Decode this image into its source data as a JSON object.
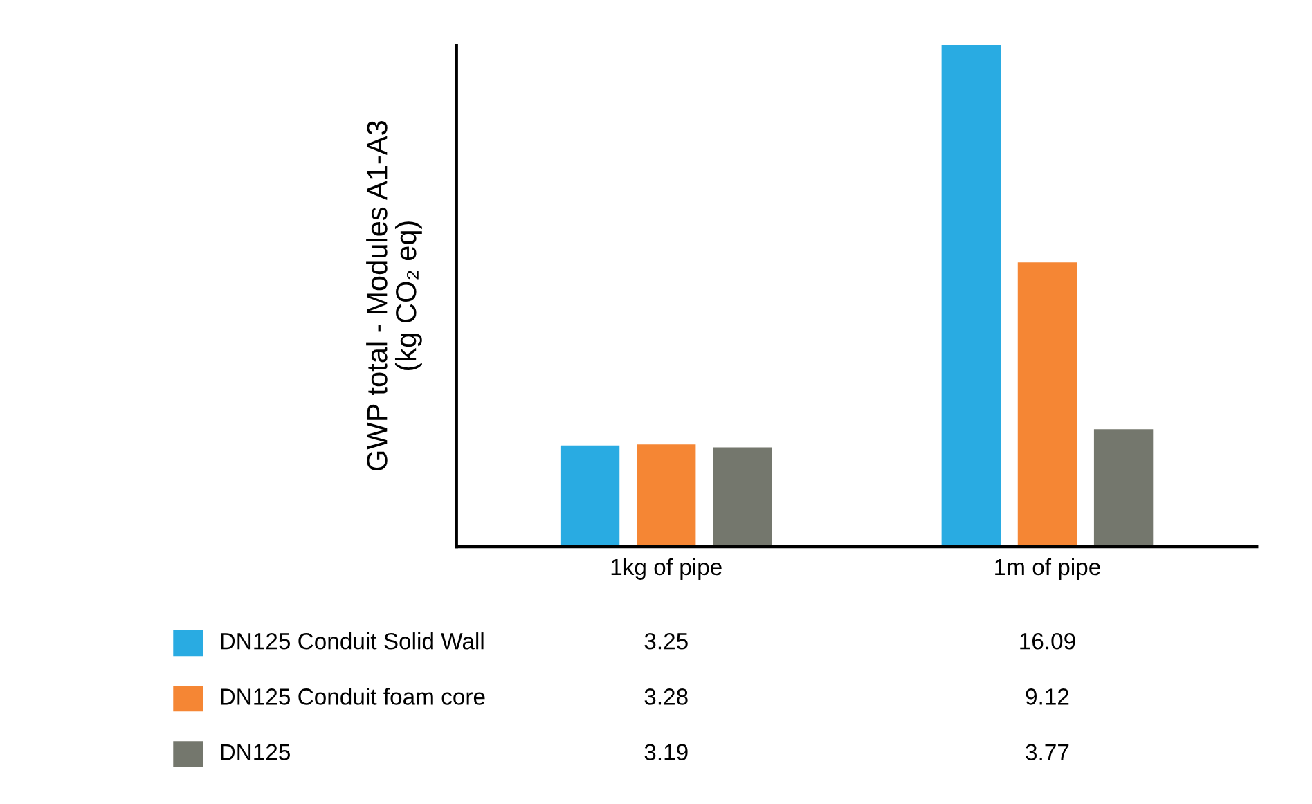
{
  "chart_data": {
    "type": "bar",
    "ylabel": "GWP total - Modules A1-A3\n(kg CO₂ eq)",
    "categories": [
      "1kg of pipe",
      "1m of pipe"
    ],
    "tick_labels": "x",
    "data_labels": true,
    "legend": "bottom",
    "series": [
      {
        "name": "DN125 Conduit Solid Wall",
        "color": "#29abe2",
        "values": [
          3.25,
          16.09
        ]
      },
      {
        "name": "DN125 Conduit foam core",
        "color": "#f58634",
        "values": [
          3.28,
          9.12
        ]
      },
      {
        "name": "DN125",
        "color": "#74776d",
        "values": [
          3.19,
          3.77
        ]
      }
    ]
  }
}
